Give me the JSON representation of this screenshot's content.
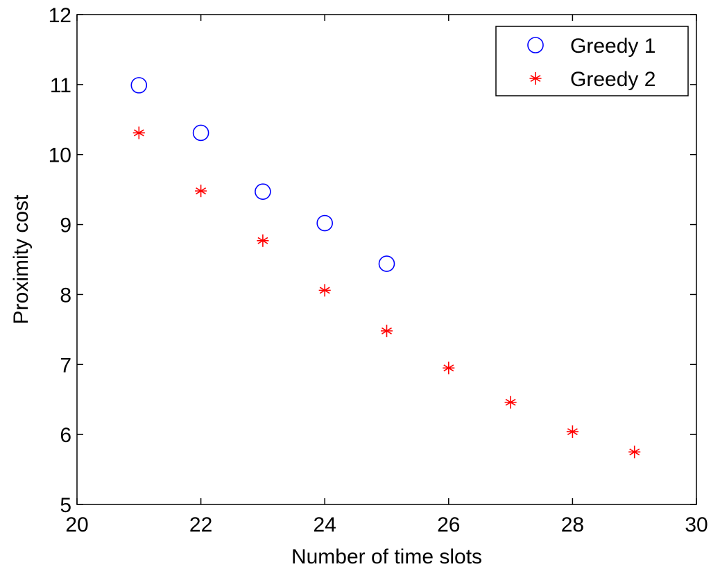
{
  "chart_data": {
    "type": "scatter",
    "xlabel": "Number of time slots",
    "ylabel": "Proximity cost",
    "xlim": [
      20,
      30
    ],
    "ylim": [
      5,
      12
    ],
    "xticks": [
      20,
      22,
      24,
      26,
      28,
      30
    ],
    "yticks": [
      5,
      6,
      7,
      8,
      9,
      10,
      11,
      12
    ],
    "grid": false,
    "legend_position": "top-right",
    "series": [
      {
        "name": "Greedy 1",
        "marker": "circle",
        "color": "#0000ff",
        "x": [
          21,
          22,
          23,
          24,
          25
        ],
        "y": [
          10.99,
          10.31,
          9.47,
          9.02,
          8.44
        ]
      },
      {
        "name": "Greedy 2",
        "marker": "asterisk",
        "color": "#ff0000",
        "x": [
          21,
          22,
          23,
          24,
          25,
          26,
          27,
          28,
          29
        ],
        "y": [
          10.31,
          9.48,
          8.77,
          8.06,
          7.48,
          6.95,
          6.46,
          6.04,
          5.75
        ]
      }
    ]
  }
}
